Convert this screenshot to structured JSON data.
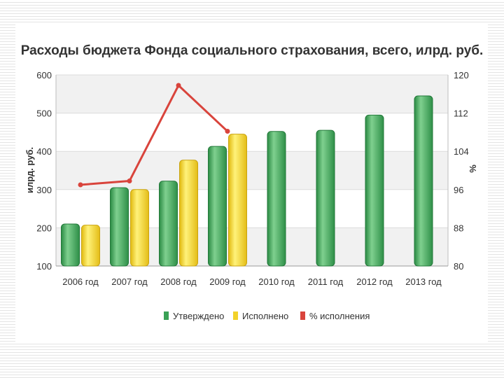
{
  "chart_data": {
    "type": "bar",
    "title": "Расходы бюджета Фонда социального страхования, всего, илрд. руб.",
    "ylabel": "илрд. руб.",
    "y2label": "%",
    "ylim": [
      100,
      600
    ],
    "yticks": [
      "100",
      "200",
      "300",
      "400",
      "500",
      "600"
    ],
    "y2lim": [
      80,
      120
    ],
    "y2ticks": [
      "80",
      "88",
      "96",
      "104",
      "112",
      "120"
    ],
    "categories": [
      "2006 год",
      "2007 год",
      "2008 год",
      "2009 год",
      "2010 год",
      "2011 год",
      "2012 год",
      "2013 год"
    ],
    "series": [
      {
        "name": "Утверждено",
        "kind": "bar",
        "color": "#3aa156",
        "values": [
          210,
          305,
          322,
          413,
          452,
          455,
          495,
          545
        ]
      },
      {
        "name": "Исполнено",
        "kind": "bar",
        "color": "#f2d22a",
        "values": [
          207,
          300,
          377,
          445,
          null,
          null,
          null,
          null
        ]
      },
      {
        "name": "% исполнения",
        "kind": "line",
        "axis": "right",
        "color": "#d9443c",
        "values": [
          97.0,
          97.8,
          117.8,
          108.2,
          null,
          null,
          null,
          null
        ]
      }
    ],
    "grid": true,
    "legend_position": "bottom"
  }
}
